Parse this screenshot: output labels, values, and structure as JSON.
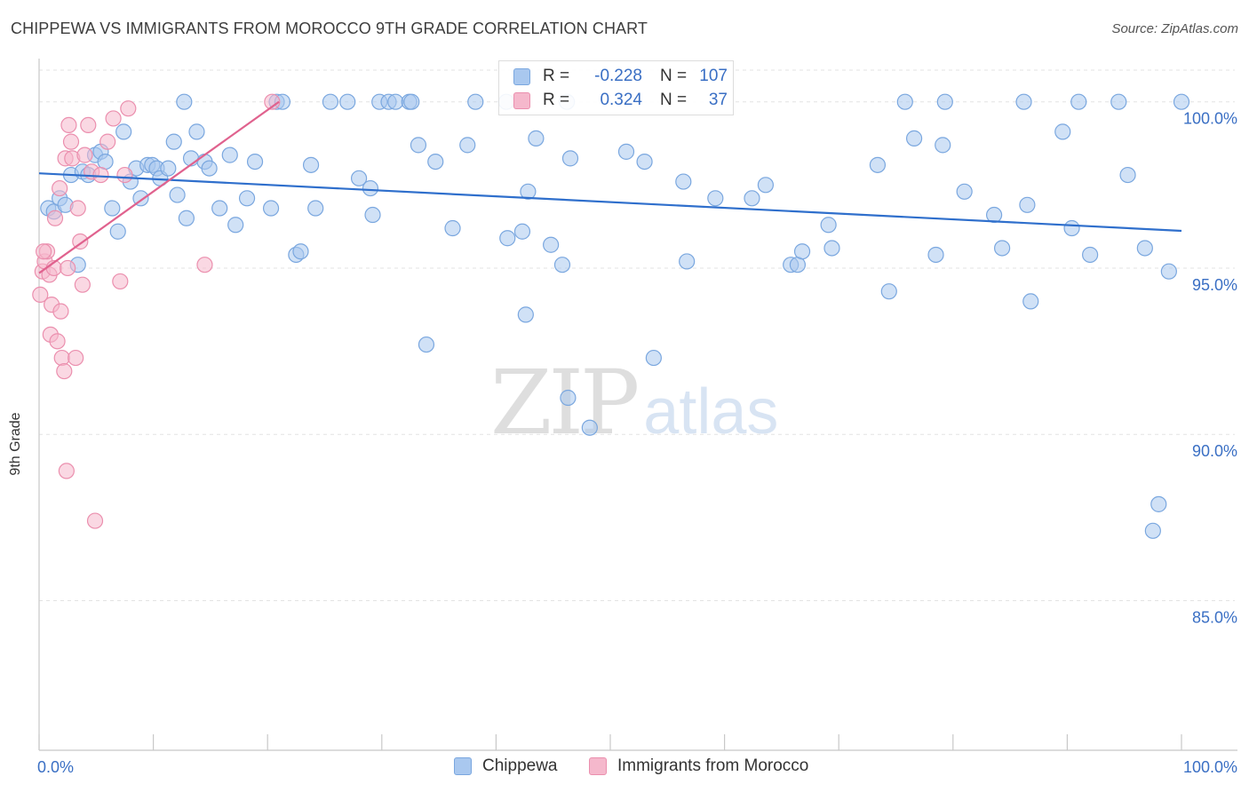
{
  "title": "CHIPPEWA VS IMMIGRANTS FROM MOROCCO 9TH GRADE CORRELATION CHART",
  "source": "Source: ZipAtlas.com",
  "watermark": {
    "zip": "ZIP",
    "atlas": "atlas"
  },
  "colors": {
    "chippewa_fill": "#a9c8ef",
    "chippewa_stroke": "#7aa7df",
    "chippewa_line": "#2f6fcc",
    "morocco_fill": "#f5b8cc",
    "morocco_stroke": "#eb8fae",
    "morocco_line": "#e0628e",
    "tick_label": "#3a6fc4",
    "grid": "#e3e3e3"
  },
  "legend": {
    "rows": [
      {
        "r_label": "R =",
        "r_value": "-0.228",
        "n_label": "N =",
        "n_value": "107"
      },
      {
        "r_label": "R =",
        "r_value": "0.324",
        "n_label": "N =",
        "n_value": "37"
      }
    ]
  },
  "bottom_legend": [
    "Chippewa",
    "Immigrants from Morocco"
  ],
  "chart_data": {
    "type": "scatter",
    "title": "CHIPPEWA VS IMMIGRANTS FROM MOROCCO 9TH GRADE CORRELATION CHART",
    "xlabel": "",
    "ylabel": "9th Grade",
    "xlim": [
      0,
      100
    ],
    "ylim": [
      80.5,
      101.3
    ],
    "x_tick_labels": [
      "0.0%",
      "100.0%"
    ],
    "x_tick_values": [
      0,
      100
    ],
    "y_ticks": [
      {
        "value": 100,
        "label": "100.0%"
      },
      {
        "value": 95,
        "label": "95.0%"
      },
      {
        "value": 90,
        "label": "90.0%"
      },
      {
        "value": 85,
        "label": "85.0%"
      }
    ],
    "grid": true,
    "legend_position": "top-center",
    "series": [
      {
        "name": "Chippewa",
        "r": -0.228,
        "n": 107,
        "trend": {
          "x": [
            0,
            100
          ],
          "y": [
            97.85,
            96.12
          ]
        },
        "points": [
          [
            0.8,
            96.8
          ],
          [
            1.3,
            96.7
          ],
          [
            1.8,
            97.1
          ],
          [
            2.3,
            96.9
          ],
          [
            2.8,
            97.8
          ],
          [
            3.4,
            95.1
          ],
          [
            3.8,
            97.9
          ],
          [
            4.3,
            97.8
          ],
          [
            4.9,
            98.4
          ],
          [
            5.4,
            98.5
          ],
          [
            5.8,
            98.2
          ],
          [
            6.4,
            96.8
          ],
          [
            6.9,
            96.1
          ],
          [
            7.4,
            99.1
          ],
          [
            8.0,
            97.6
          ],
          [
            8.5,
            98.0
          ],
          [
            8.9,
            97.1
          ],
          [
            9.5,
            98.1
          ],
          [
            9.9,
            98.1
          ],
          [
            10.3,
            98.0
          ],
          [
            10.6,
            97.7
          ],
          [
            11.3,
            98.0
          ],
          [
            11.8,
            98.8
          ],
          [
            12.1,
            97.2
          ],
          [
            12.7,
            100.0
          ],
          [
            12.9,
            96.5
          ],
          [
            13.3,
            98.3
          ],
          [
            13.8,
            99.1
          ],
          [
            14.5,
            98.2
          ],
          [
            14.9,
            98.0
          ],
          [
            15.8,
            96.8
          ],
          [
            16.7,
            98.4
          ],
          [
            17.2,
            96.3
          ],
          [
            18.2,
            97.1
          ],
          [
            18.9,
            98.2
          ],
          [
            20.3,
            96.8
          ],
          [
            20.8,
            100.0
          ],
          [
            21.3,
            100.0
          ],
          [
            22.5,
            95.4
          ],
          [
            22.9,
            95.5
          ],
          [
            23.8,
            98.1
          ],
          [
            24.2,
            96.8
          ],
          [
            25.5,
            100.0
          ],
          [
            27.0,
            100.0
          ],
          [
            28.0,
            97.7
          ],
          [
            29.0,
            97.4
          ],
          [
            29.2,
            96.6
          ],
          [
            29.8,
            100.0
          ],
          [
            30.6,
            100.0
          ],
          [
            31.2,
            100.0
          ],
          [
            32.4,
            100.0
          ],
          [
            32.6,
            100.0
          ],
          [
            33.2,
            98.7
          ],
          [
            33.9,
            92.7
          ],
          [
            34.7,
            98.2
          ],
          [
            36.2,
            96.2
          ],
          [
            38.2,
            100.0
          ],
          [
            37.5,
            98.7
          ],
          [
            40.9,
            100.0
          ],
          [
            41.0,
            95.9
          ],
          [
            42.3,
            96.1
          ],
          [
            42.6,
            93.6
          ],
          [
            42.8,
            97.3
          ],
          [
            43.5,
            98.9
          ],
          [
            44.8,
            95.7
          ],
          [
            45.8,
            95.1
          ],
          [
            46.3,
            91.1
          ],
          [
            46.5,
            98.3
          ],
          [
            46.2,
            100.0
          ],
          [
            48.2,
            90.2
          ],
          [
            51.4,
            98.5
          ],
          [
            53.0,
            98.2
          ],
          [
            53.8,
            92.3
          ],
          [
            56.4,
            97.6
          ],
          [
            56.7,
            95.2
          ],
          [
            59.2,
            97.1
          ],
          [
            62.4,
            97.1
          ],
          [
            63.6,
            97.5
          ],
          [
            65.8,
            95.1
          ],
          [
            66.4,
            95.1
          ],
          [
            66.8,
            95.5
          ],
          [
            69.1,
            96.3
          ],
          [
            69.4,
            95.6
          ],
          [
            73.4,
            98.1
          ],
          [
            74.4,
            94.3
          ],
          [
            75.8,
            100.0
          ],
          [
            76.6,
            98.9
          ],
          [
            78.5,
            95.4
          ],
          [
            79.1,
            98.7
          ],
          [
            79.3,
            100.0
          ],
          [
            81.0,
            97.3
          ],
          [
            83.6,
            96.6
          ],
          [
            84.3,
            95.6
          ],
          [
            86.2,
            100.0
          ],
          [
            86.5,
            96.9
          ],
          [
            86.8,
            94.0
          ],
          [
            89.6,
            99.1
          ],
          [
            90.4,
            96.2
          ],
          [
            91.0,
            100.0
          ],
          [
            92.0,
            95.4
          ],
          [
            94.5,
            100.0
          ],
          [
            95.3,
            97.8
          ],
          [
            96.8,
            95.6
          ],
          [
            97.5,
            87.1
          ],
          [
            98.0,
            87.9
          ],
          [
            98.9,
            94.9
          ],
          [
            100.0,
            100.0
          ]
        ]
      },
      {
        "name": "Immigrants from Morocco",
        "r": 0.324,
        "n": 37,
        "trend": {
          "x": [
            0,
            21
          ],
          "y": [
            94.85,
            100.0
          ]
        },
        "points": [
          [
            0.1,
            94.2
          ],
          [
            0.3,
            94.9
          ],
          [
            0.5,
            95.2
          ],
          [
            0.7,
            95.5
          ],
          [
            0.9,
            94.8
          ],
          [
            1.0,
            93.0
          ],
          [
            1.1,
            93.9
          ],
          [
            1.3,
            95.0
          ],
          [
            1.4,
            96.5
          ],
          [
            1.6,
            92.8
          ],
          [
            1.8,
            97.4
          ],
          [
            1.9,
            93.7
          ],
          [
            2.0,
            92.3
          ],
          [
            2.2,
            91.9
          ],
          [
            2.3,
            98.3
          ],
          [
            2.4,
            88.9
          ],
          [
            2.5,
            95.0
          ],
          [
            2.6,
            99.3
          ],
          [
            2.8,
            98.8
          ],
          [
            2.9,
            98.3
          ],
          [
            3.2,
            92.3
          ],
          [
            3.4,
            96.8
          ],
          [
            3.6,
            95.8
          ],
          [
            3.8,
            94.5
          ],
          [
            4.0,
            98.4
          ],
          [
            4.3,
            99.3
          ],
          [
            4.6,
            97.9
          ],
          [
            4.9,
            87.4
          ],
          [
            5.4,
            97.8
          ],
          [
            6.0,
            98.8
          ],
          [
            6.5,
            99.5
          ],
          [
            7.1,
            94.6
          ],
          [
            7.5,
            97.8
          ],
          [
            7.8,
            99.8
          ],
          [
            14.5,
            95.1
          ],
          [
            20.4,
            100.0
          ],
          [
            0.4,
            95.5
          ]
        ]
      }
    ]
  }
}
